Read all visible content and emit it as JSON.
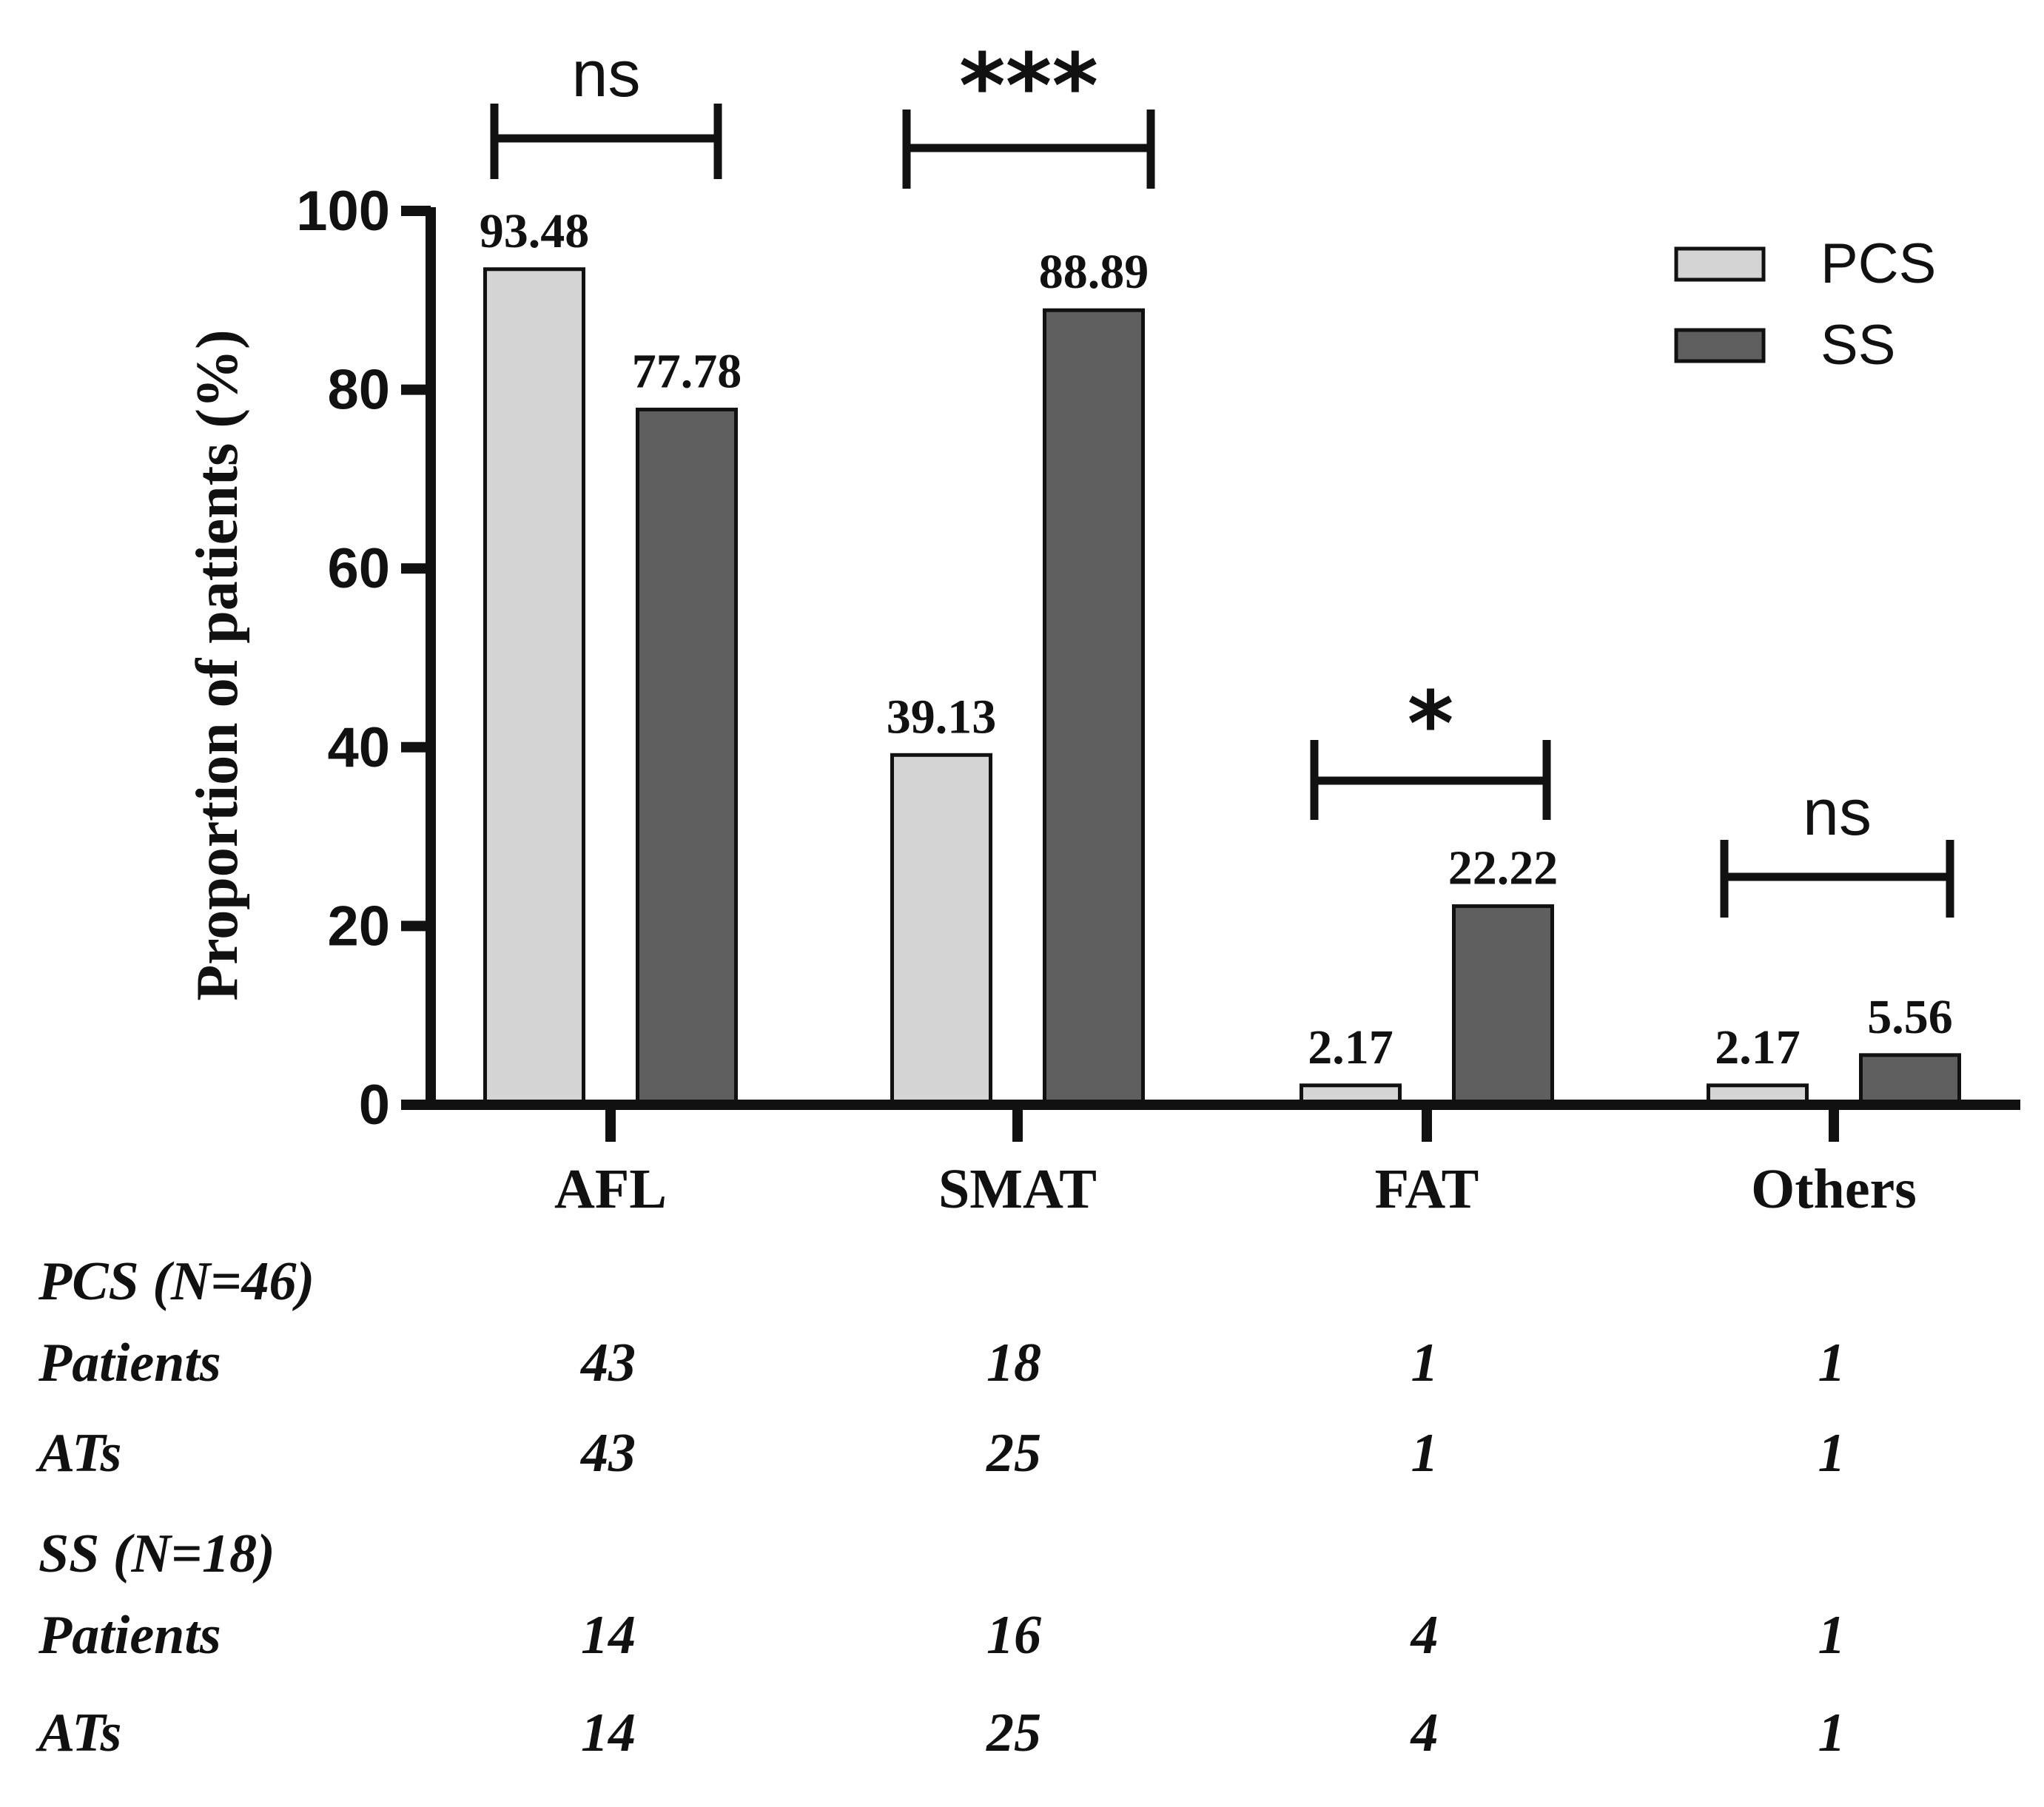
{
  "chart_data": {
    "type": "bar",
    "categories": [
      "AFL",
      "SMAT",
      "FAT",
      "Others"
    ],
    "series": [
      {
        "name": "PCS",
        "values": [
          93.48,
          39.13,
          2.17,
          2.17
        ],
        "labels": [
          "93.48",
          "39.13",
          "2.17",
          "2.17"
        ],
        "color": "#d4d4d4"
      },
      {
        "name": "SS",
        "values": [
          77.78,
          88.89,
          22.22,
          5.56
        ],
        "labels": [
          "77.78",
          "88.89",
          "22.22",
          "5.56"
        ],
        "color": "#5f5f5f"
      }
    ],
    "ylabel": "Proportion of patients (%)",
    "ylim": [
      0,
      100
    ],
    "yticks": [
      0,
      20,
      40,
      60,
      80,
      100
    ],
    "legend_position": "top-right",
    "significance": [
      "ns",
      "***",
      "*",
      "ns"
    ]
  },
  "table": {
    "groups": [
      {
        "title": "PCS (N=46)",
        "rows": [
          {
            "label": "Patients",
            "values": [
              "43",
              "18",
              "1",
              "1"
            ]
          },
          {
            "label": "ATs",
            "values": [
              "43",
              "25",
              "1",
              "1"
            ]
          }
        ]
      },
      {
        "title": "SS (N=18)",
        "rows": [
          {
            "label": "Patients",
            "values": [
              "14",
              "16",
              "4",
              "1"
            ]
          },
          {
            "label": "ATs",
            "values": [
              "14",
              "25",
              "4",
              "1"
            ]
          }
        ]
      }
    ]
  },
  "colors": {
    "axis": "#111111",
    "bar_stroke": "#111111"
  }
}
